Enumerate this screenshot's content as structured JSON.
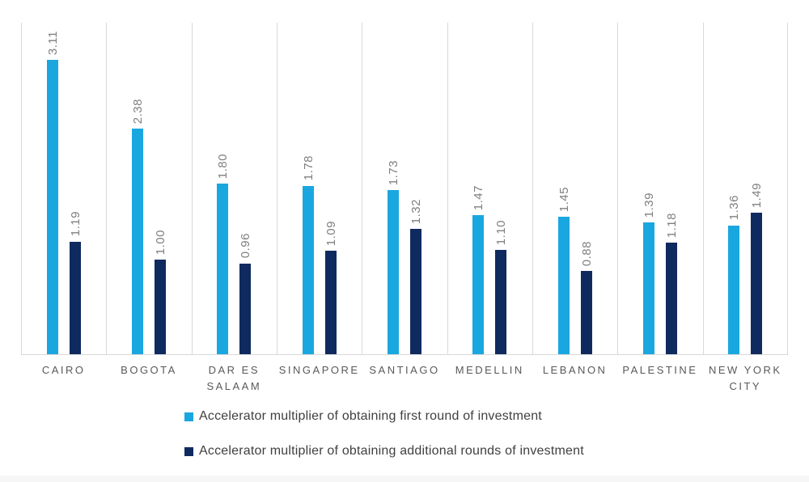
{
  "colors": {
    "series_first_round": "#1aa7e0",
    "series_additional_rounds": "#0f2a5f",
    "gridline": "#d9d9d9",
    "value_label_text": "#7f7f7f",
    "category_label_text": "#595959",
    "legend_text": "#404040",
    "background": "#ffffff"
  },
  "chart_data": {
    "type": "bar",
    "title": "",
    "xlabel": "",
    "ylabel": "",
    "ylim": [
      0,
      3.5
    ],
    "grid": "vertical category separators, light gray; no horizontal gridlines; no y-axis labels",
    "legend_position": "bottom-left, stacked rows",
    "value_label_format": "0.00",
    "value_label_orientation": "rotated 90deg, reads bottom-to-top, above each bar",
    "categories": [
      "CAIRO",
      "BOGOTA",
      "DAR ES SALAAM",
      "SINGAPORE",
      "SANTIAGO",
      "MEDELLIN",
      "LEBANON",
      "PALESTINE",
      "NEW YORK CITY"
    ],
    "series": [
      {
        "name": "Accelerator multiplier of obtaining first round of investment",
        "color": "#1aa7e0",
        "values": [
          3.11,
          2.38,
          1.8,
          1.78,
          1.73,
          1.47,
          1.45,
          1.39,
          1.36
        ]
      },
      {
        "name": "Accelerator multiplier of obtaining additional rounds of investment",
        "color": "#0f2a5f",
        "values": [
          1.19,
          1.0,
          0.96,
          1.09,
          1.32,
          1.1,
          0.88,
          1.18,
          1.49
        ]
      }
    ]
  },
  "legend": {
    "items": [
      {
        "label": "Accelerator multiplier of obtaining first round of investment",
        "color": "#1aa7e0"
      },
      {
        "label": "Accelerator multiplier of obtaining additional rounds of investment",
        "color": "#0f2a5f"
      }
    ]
  }
}
